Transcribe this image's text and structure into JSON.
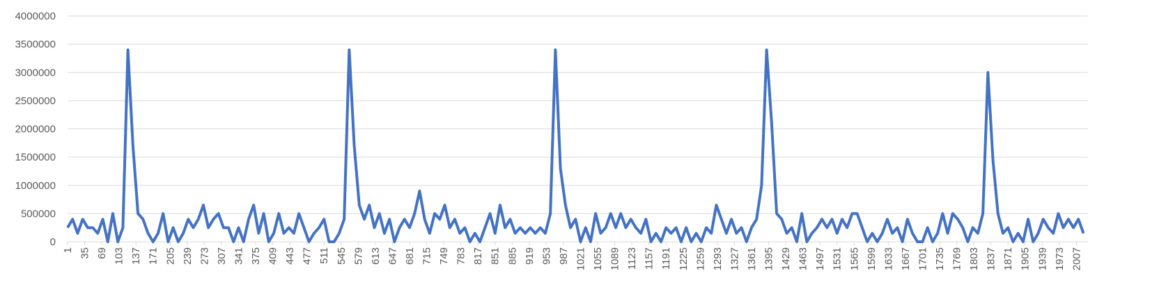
{
  "chart_data": {
    "type": "line",
    "color": "#4472c4",
    "grid": true,
    "xlim": [
      1,
      2030
    ],
    "xticks": [
      1,
      35,
      69,
      103,
      137,
      171,
      205,
      239,
      273,
      307,
      341,
      375,
      409,
      443,
      477,
      511,
      545,
      579,
      613,
      647,
      681,
      715,
      749,
      783,
      817,
      851,
      885,
      919,
      953,
      987,
      1021,
      1055,
      1089,
      1123,
      1157,
      1191,
      1225,
      1259,
      1293,
      1327,
      1361,
      1395,
      1429,
      1463,
      1497,
      1531,
      1565,
      1599,
      1633,
      1667,
      1701,
      1735,
      1769,
      1803,
      1837,
      1871,
      1905,
      1939,
      1973,
      2007
    ],
    "ylim": [
      0,
      4000000
    ],
    "yticks": [
      0,
      500000,
      1000000,
      1500000,
      2000000,
      2500000,
      3000000,
      3500000,
      4000000
    ],
    "x": [
      1,
      11,
      21,
      31,
      41,
      51,
      61,
      71,
      81,
      91,
      101,
      111,
      121,
      131,
      141,
      151,
      161,
      171,
      181,
      191,
      201,
      211,
      221,
      231,
      241,
      251,
      261,
      271,
      281,
      291,
      301,
      311,
      321,
      331,
      341,
      351,
      361,
      371,
      381,
      391,
      401,
      411,
      421,
      431,
      441,
      451,
      461,
      471,
      481,
      491,
      501,
      511,
      521,
      531,
      541,
      551,
      561,
      571,
      581,
      591,
      601,
      611,
      621,
      631,
      641,
      651,
      661,
      671,
      681,
      691,
      701,
      711,
      721,
      731,
      741,
      751,
      761,
      771,
      781,
      791,
      801,
      811,
      821,
      831,
      841,
      851,
      861,
      871,
      881,
      891,
      901,
      911,
      921,
      931,
      941,
      951,
      961,
      971,
      981,
      991,
      1001,
      1011,
      1021,
      1031,
      1041,
      1051,
      1061,
      1071,
      1081,
      1091,
      1101,
      1111,
      1121,
      1131,
      1141,
      1151,
      1161,
      1171,
      1181,
      1191,
      1201,
      1211,
      1221,
      1231,
      1241,
      1251,
      1261,
      1271,
      1281,
      1291,
      1301,
      1311,
      1321,
      1331,
      1341,
      1351,
      1361,
      1371,
      1381,
      1391,
      1401,
      1411,
      1421,
      1431,
      1441,
      1451,
      1461,
      1471,
      1481,
      1491,
      1501,
      1511,
      1521,
      1531,
      1541,
      1551,
      1561,
      1571,
      1581,
      1591,
      1601,
      1611,
      1621,
      1631,
      1641,
      1651,
      1661,
      1671,
      1681,
      1691,
      1701,
      1711,
      1721,
      1731,
      1741,
      1751,
      1761,
      1771,
      1781,
      1791,
      1801,
      1811,
      1821,
      1831,
      1841,
      1851,
      1861,
      1871,
      1881,
      1891,
      1901,
      1911,
      1921,
      1931,
      1941,
      1951,
      1961,
      1971,
      1981,
      1991,
      2001,
      2011,
      2021
    ],
    "values": [
      250000,
      400000,
      150000,
      400000,
      250000,
      250000,
      150000,
      400000,
      0,
      500000,
      0,
      250000,
      3400000,
      1700000,
      500000,
      400000,
      150000,
      0,
      150000,
      500000,
      0,
      250000,
      0,
      150000,
      400000,
      250000,
      400000,
      650000,
      250000,
      400000,
      500000,
      250000,
      250000,
      0,
      250000,
      0,
      400000,
      650000,
      150000,
      500000,
      0,
      150000,
      500000,
      150000,
      250000,
      150000,
      500000,
      250000,
      0,
      150000,
      250000,
      400000,
      0,
      0,
      150000,
      400000,
      3400000,
      1700000,
      650000,
      400000,
      650000,
      250000,
      500000,
      150000,
      400000,
      0,
      250000,
      400000,
      250000,
      500000,
      900000,
      400000,
      150000,
      500000,
      400000,
      650000,
      250000,
      400000,
      150000,
      250000,
      0,
      150000,
      0,
      250000,
      500000,
      150000,
      650000,
      250000,
      400000,
      150000,
      250000,
      150000,
      250000,
      150000,
      250000,
      150000,
      500000,
      3400000,
      1300000,
      650000,
      250000,
      400000,
      0,
      250000,
      0,
      500000,
      150000,
      250000,
      500000,
      250000,
      500000,
      250000,
      400000,
      250000,
      150000,
      400000,
      0,
      150000,
      0,
      250000,
      150000,
      250000,
      0,
      250000,
      0,
      150000,
      0,
      250000,
      150000,
      650000,
      400000,
      150000,
      400000,
      150000,
      250000,
      0,
      250000,
      400000,
      1000000,
      3400000,
      2100000,
      500000,
      400000,
      150000,
      250000,
      0,
      500000,
      0,
      150000,
      250000,
      400000,
      250000,
      400000,
      150000,
      400000,
      250000,
      500000,
      500000,
      250000,
      0,
      150000,
      0,
      150000,
      400000,
      150000,
      250000,
      0,
      400000,
      150000,
      0,
      0,
      250000,
      0,
      150000,
      500000,
      150000,
      500000,
      400000,
      250000,
      0,
      250000,
      150000,
      500000,
      3000000,
      1450000,
      500000,
      150000,
      250000,
      0,
      150000,
      0,
      400000,
      0,
      150000,
      400000,
      250000,
      150000,
      500000,
      250000,
      400000,
      250000,
      400000,
      150000
    ]
  }
}
